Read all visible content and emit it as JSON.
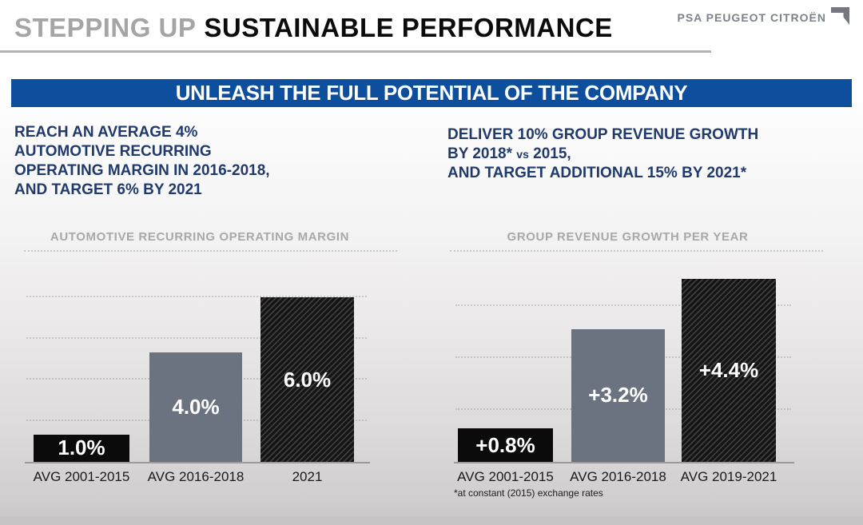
{
  "header": {
    "title_gray": "STEPPING UP",
    "title_black": "SUSTAINABLE PERFORMANCE",
    "logo_text": "PSA PEUGEOT CITROËN",
    "logo_icon": "psa-corner-icon"
  },
  "banner": {
    "text": "UNLEASH THE FULL POTENTIAL OF THE COMPANY"
  },
  "goals": {
    "left": "REACH AN AVERAGE 4%\nAUTOMOTIVE RECURRING\nOPERATING MARGIN IN 2016-2018,\nAND TARGET 6% BY 2021",
    "right": {
      "line1": "DELIVER 10% GROUP REVENUE GROWTH",
      "line2_a": "BY 2018*",
      "line2_vs": "vs",
      "line2_b": "2015,",
      "line3": "AND TARGET ADDITIONAL 15% BY 2021*"
    }
  },
  "footnote": "*at constant (2015) exchange rates",
  "chart_data": [
    {
      "type": "bar",
      "title": "AUTOMOTIVE RECURRING OPERATING MARGIN",
      "categories": [
        "AVG 2001-2015",
        "AVG 2016-2018",
        "2021"
      ],
      "values": [
        1.0,
        4.0,
        6.0
      ],
      "value_labels": [
        "1.0%",
        "4.0%",
        "6.0%"
      ],
      "bar_styles": [
        "solid-black",
        "solid-gray",
        "hatched"
      ],
      "ylim": [
        0,
        6.3
      ],
      "gridlines_at_values": [
        1.5,
        3,
        4.5,
        6
      ],
      "grid": "dotted-horizontal",
      "xlabel": "",
      "ylabel": ""
    },
    {
      "type": "bar",
      "title": "GROUP REVENUE GROWTH PER YEAR",
      "categories": [
        "AVG 2001-2015",
        "AVG 2016-2018",
        "AVG 2019-2021"
      ],
      "values": [
        0.8,
        3.2,
        4.4
      ],
      "value_labels": [
        "+0.8%",
        "+3.2%",
        "+4.4%"
      ],
      "bar_styles": [
        "solid-black",
        "solid-gray",
        "hatched"
      ],
      "ylim": [
        0,
        4.6
      ],
      "gridlines_at_values": [
        1.25,
        2.5,
        3.75
      ],
      "grid": "dotted-horizontal",
      "xlabel": "",
      "ylabel": ""
    }
  ],
  "colors": {
    "banner_blue": "#0d4f9d",
    "goal_navy": "#1f3a6b",
    "title_gray": "#a5a5a5",
    "title_black": "#0b0b0b",
    "chart_title_gray": "#a9a8a8",
    "bar_black": "#0b0b0b",
    "bar_gray": "#6b7380",
    "hatch_dark": "#141414",
    "hatch_light": "#3d3d3d",
    "logo_gray": "#7d828a"
  }
}
